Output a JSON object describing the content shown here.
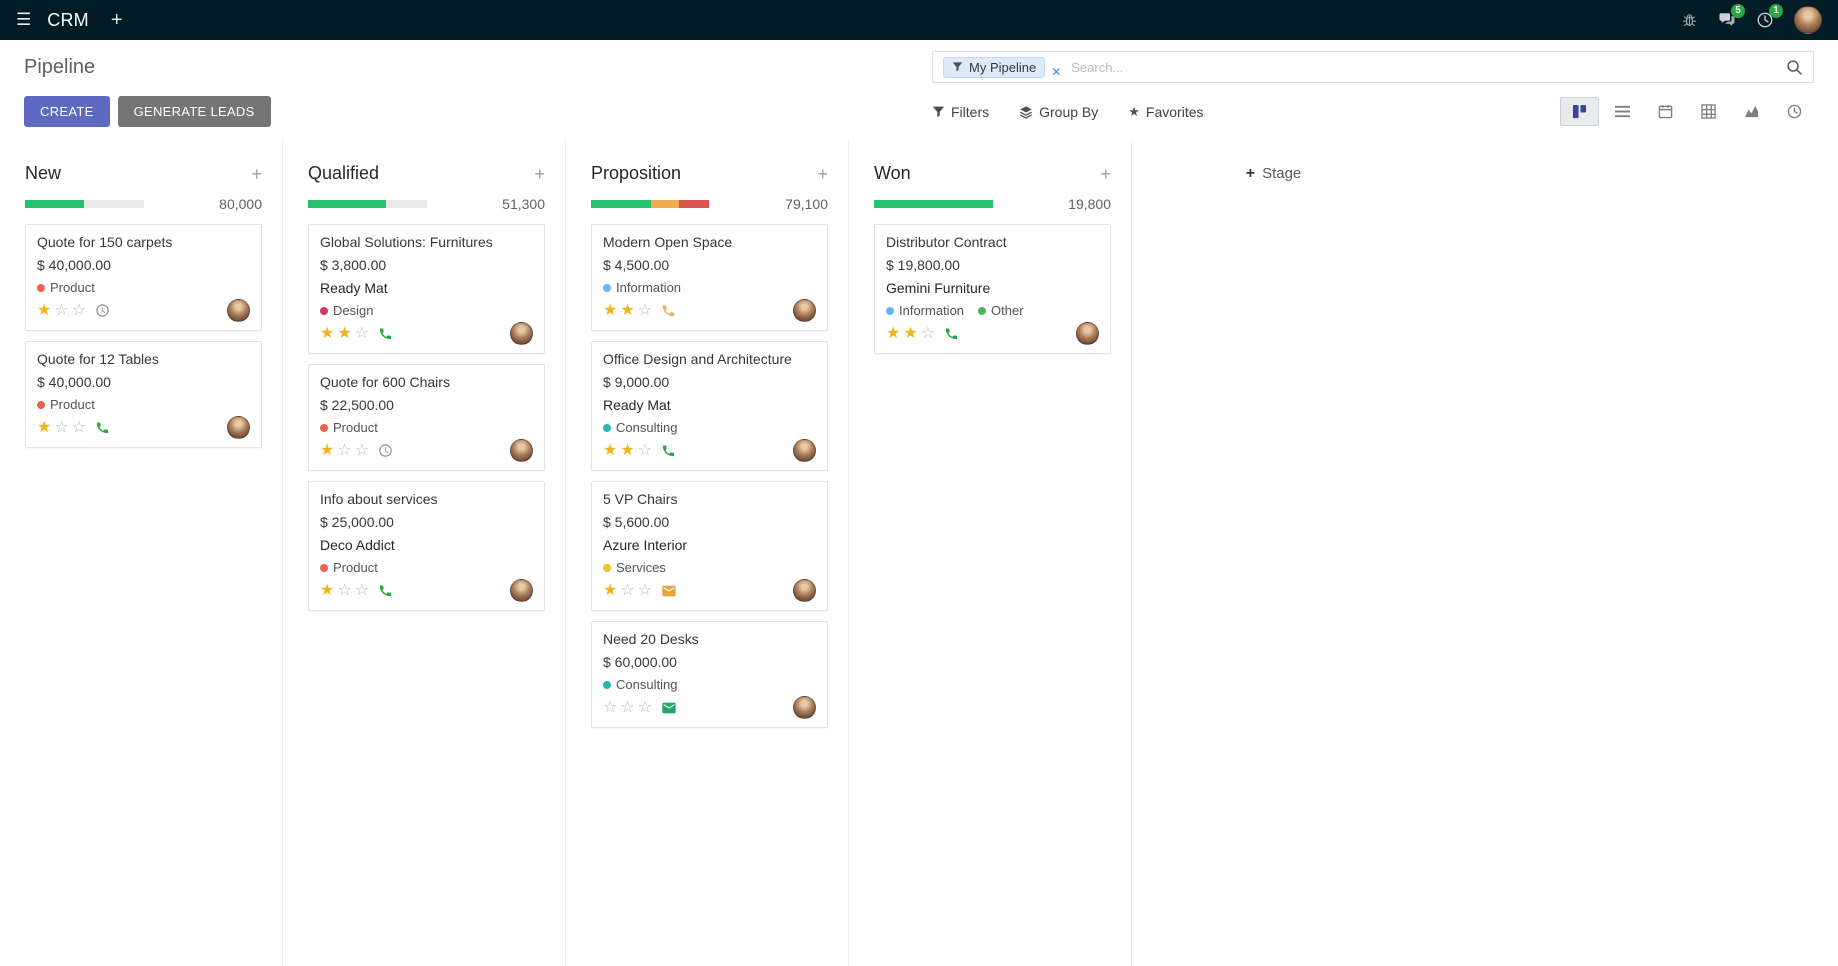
{
  "topbar": {
    "app_name": "CRM",
    "messages_badge": "5",
    "activities_badge": "1"
  },
  "control_panel": {
    "title": "Pipeline",
    "create_label": "CREATE",
    "generate_leads_label": "GENERATE LEADS",
    "filters_label": "Filters",
    "group_by_label": "Group By",
    "favorites_label": "Favorites",
    "search_facet": "My Pipeline",
    "search_placeholder": "Search...",
    "colors": {
      "primary_button": "#5c6bc0",
      "secondary_button": "#757575"
    }
  },
  "kanban": {
    "add_stage_label": "Stage",
    "columns": [
      {
        "name": "New",
        "total": "80,000",
        "progress": [
          {
            "color": "#28c16d",
            "pct": 50
          }
        ],
        "cards": [
          {
            "title": "Quote for 150 carpets",
            "amount": "$ 40,000.00",
            "partner": "",
            "tags": [
              {
                "label": "Product",
                "color": "#f06050"
              }
            ],
            "stars_filled": 1,
            "activity": {
              "icon": "clock",
              "color": "#8d9297"
            }
          },
          {
            "title": "Quote for 12 Tables",
            "amount": "$ 40,000.00",
            "partner": "",
            "tags": [
              {
                "label": "Product",
                "color": "#f06050"
              }
            ],
            "stars_filled": 1,
            "activity": {
              "icon": "phone",
              "color": "#28a745"
            }
          }
        ]
      },
      {
        "name": "Qualified",
        "total": "51,300",
        "progress": [
          {
            "color": "#28c16d",
            "pct": 66
          }
        ],
        "cards": [
          {
            "title": "Global Solutions: Furnitures",
            "amount": "$ 3,800.00",
            "partner": "Ready Mat",
            "tags": [
              {
                "label": "Design",
                "color": "#d6336c"
              }
            ],
            "stars_filled": 2,
            "activity": {
              "icon": "phone",
              "color": "#28a745"
            }
          },
          {
            "title": "Quote for 600 Chairs",
            "amount": "$ 22,500.00",
            "partner": "",
            "tags": [
              {
                "label": "Product",
                "color": "#f06050"
              }
            ],
            "stars_filled": 1,
            "activity": {
              "icon": "clock",
              "color": "#8d9297"
            }
          },
          {
            "title": "Info about services",
            "amount": "$ 25,000.00",
            "partner": "Deco Addict",
            "tags": [
              {
                "label": "Product",
                "color": "#f06050"
              }
            ],
            "stars_filled": 1,
            "activity": {
              "icon": "phone",
              "color": "#28a745"
            }
          }
        ]
      },
      {
        "name": "Proposition",
        "total": "79,100",
        "progress": [
          {
            "color": "#28c16d",
            "pct": 51
          },
          {
            "color": "#f0ad4e",
            "pct": 23
          },
          {
            "color": "#d9534f",
            "pct": 26
          }
        ],
        "cards": [
          {
            "title": "Modern Open Space",
            "amount": "$ 4,500.00",
            "partner": "",
            "tags": [
              {
                "label": "Information",
                "color": "#64b5f6"
              }
            ],
            "stars_filled": 2,
            "activity": {
              "icon": "phone",
              "color": "#f0ad4e"
            }
          },
          {
            "title": "Office Design and Architecture",
            "amount": "$ 9,000.00",
            "partner": "Ready Mat",
            "tags": [
              {
                "label": "Consulting",
                "color": "#2eb8b0"
              }
            ],
            "stars_filled": 2,
            "activity": {
              "icon": "phone",
              "color": "#28a745"
            }
          },
          {
            "title": "5 VP Chairs",
            "amount": "$ 5,600.00",
            "partner": "Azure Interior",
            "tags": [
              {
                "label": "Services",
                "color": "#f0c02a"
              }
            ],
            "stars_filled": 1,
            "activity": {
              "icon": "envelope",
              "color": "#e8a33d"
            }
          },
          {
            "title": "Need 20 Desks",
            "amount": "$ 60,000.00",
            "partner": "",
            "tags": [
              {
                "label": "Consulting",
                "color": "#2eb8b0"
              }
            ],
            "stars_filled": 0,
            "activity": {
              "icon": "envelope",
              "color": "#21a567"
            }
          }
        ]
      },
      {
        "name": "Won",
        "total": "19,800",
        "progress": [
          {
            "color": "#28c16d",
            "pct": 100
          }
        ],
        "cards": [
          {
            "title": "Distributor Contract",
            "amount": "$ 19,800.00",
            "partner": "Gemini Furniture",
            "tags": [
              {
                "label": "Information",
                "color": "#64b5f6"
              },
              {
                "label": "Other",
                "color": "#48b858"
              }
            ],
            "stars_filled": 2,
            "activity": {
              "icon": "phone",
              "color": "#28a745"
            }
          }
        ]
      }
    ]
  }
}
